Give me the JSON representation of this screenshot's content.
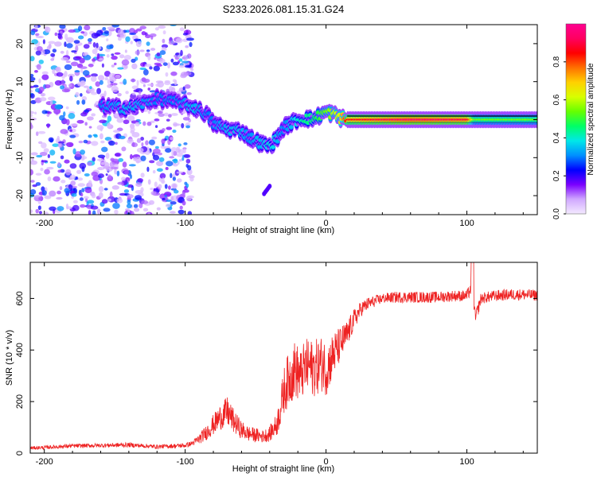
{
  "figure_title": "S233.2026.081.15.31.G24",
  "chart_data": [
    {
      "type": "heatmap",
      "name": "spectrogram",
      "xlabel": "Height of straight line (km)",
      "ylabel": "Frequency (Hz)",
      "xlim": [
        -210,
        150
      ],
      "ylim": [
        -25,
        25
      ],
      "xticks": [
        -200,
        -100,
        0,
        100
      ],
      "xtick_labels": [
        "-200",
        "-100",
        "0",
        "100"
      ],
      "yticks": [
        20,
        10,
        0,
        -10,
        -20
      ],
      "ytick_labels": [
        "20",
        "10",
        "0",
        "-10",
        "-20"
      ],
      "colorbar": {
        "label": "Normalized spectral amplitude",
        "range": [
          0,
          1
        ],
        "ticks": [
          0.0,
          0.2,
          0.4,
          0.6,
          0.8
        ],
        "tick_labels": [
          "0.0",
          "0.2",
          "0.4",
          "0.6",
          "0.8"
        ],
        "colors": [
          "#f4eaff",
          "#d0a8ff",
          "#7b00ff",
          "#0000ff",
          "#0090ff",
          "#00e8e8",
          "#00ff66",
          "#66ff00",
          "#d8ff00",
          "#ffd000",
          "#ff7000",
          "#ff0000",
          "#ff0060",
          "#ff0090"
        ]
      },
      "frequency_track": [
        {
          "x": -160,
          "f": 3.5,
          "amp": 0.3
        },
        {
          "x": -140,
          "f": 3.0,
          "amp": 0.35
        },
        {
          "x": -120,
          "f": 5.5,
          "amp": 0.3
        },
        {
          "x": -105,
          "f": 4.5,
          "amp": 0.3
        },
        {
          "x": -95,
          "f": 3.5,
          "amp": 0.35
        },
        {
          "x": -85,
          "f": 1.5,
          "amp": 0.3
        },
        {
          "x": -80,
          "f": -1.0,
          "amp": 0.3
        },
        {
          "x": -70,
          "f": -2.5,
          "amp": 0.35
        },
        {
          "x": -60,
          "f": -3.0,
          "amp": 0.35
        },
        {
          "x": -55,
          "f": -4.5,
          "amp": 0.3
        },
        {
          "x": -50,
          "f": -5.5,
          "amp": 0.35
        },
        {
          "x": -45,
          "f": -6.5,
          "amp": 0.35
        },
        {
          "x": -40,
          "f": -7.0,
          "amp": 0.4
        },
        {
          "x": -35,
          "f": -5.0,
          "amp": 0.35
        },
        {
          "x": -30,
          "f": -2.0,
          "amp": 0.3
        },
        {
          "x": -25,
          "f": -1.0,
          "amp": 0.35
        },
        {
          "x": -20,
          "f": 0.0,
          "amp": 0.4
        },
        {
          "x": -15,
          "f": 0.5,
          "amp": 0.45
        },
        {
          "x": -10,
          "f": 0.0,
          "amp": 0.45
        },
        {
          "x": -5,
          "f": 1.0,
          "amp": 0.5
        },
        {
          "x": 0,
          "f": 2.0,
          "amp": 0.55
        },
        {
          "x": 5,
          "f": 1.5,
          "amp": 0.6
        },
        {
          "x": 10,
          "f": 0.5,
          "amp": 0.65
        },
        {
          "x": 15,
          "f": 0.0,
          "amp": 0.85
        },
        {
          "x": 60,
          "f": 0.0,
          "amp": 0.95
        },
        {
          "x": 100,
          "f": 0.0,
          "amp": 0.9
        },
        {
          "x": 105,
          "f": 0.0,
          "amp": 0.55
        },
        {
          "x": 150,
          "f": 0.0,
          "amp": 0.55
        }
      ]
    },
    {
      "type": "line",
      "name": "snr",
      "xlabel": "Height of straight line (km)",
      "ylabel": "SNR (10 * v/v)",
      "xlim": [
        -210,
        150
      ],
      "ylim": [
        0,
        740
      ],
      "xticks": [
        -200,
        -100,
        0,
        100
      ],
      "xtick_labels": [
        "-200",
        "-100",
        "0",
        "100"
      ],
      "yticks": [
        0,
        200,
        400,
        600
      ],
      "ytick_labels": [
        "0",
        "200",
        "400",
        "600"
      ],
      "color": "#ee2222",
      "series": [
        {
          "name": "SNR",
          "x": [
            -210,
            -200,
            -180,
            -160,
            -140,
            -120,
            -100,
            -95,
            -90,
            -85,
            -80,
            -75,
            -70,
            -65,
            -60,
            -55,
            -50,
            -45,
            -40,
            -35,
            -32,
            -30,
            -28,
            -25,
            -22,
            -20,
            -18,
            -15,
            -12,
            -10,
            -8,
            -5,
            -2,
            0,
            5,
            10,
            15,
            20,
            25,
            30,
            35,
            40,
            50,
            60,
            70,
            80,
            90,
            100,
            104,
            106,
            110,
            120,
            130,
            140,
            150
          ],
          "values": [
            20,
            22,
            28,
            30,
            32,
            25,
            30,
            38,
            55,
            80,
            110,
            140,
            160,
            120,
            90,
            75,
            70,
            65,
            75,
            110,
            180,
            240,
            270,
            300,
            330,
            310,
            300,
            330,
            340,
            330,
            330,
            340,
            350,
            320,
            380,
            420,
            460,
            520,
            560,
            580,
            590,
            600,
            605,
            605,
            605,
            605,
            610,
            610,
            650,
            520,
            600,
            610,
            615,
            615,
            612
          ],
          "noise": [
            6,
            7,
            8,
            8,
            9,
            8,
            9,
            10,
            20,
            30,
            40,
            50,
            60,
            45,
            35,
            30,
            28,
            25,
            30,
            45,
            70,
            90,
            100,
            110,
            110,
            110,
            100,
            110,
            110,
            110,
            110,
            110,
            110,
            100,
            90,
            70,
            55,
            40,
            30,
            25,
            22,
            20,
            22,
            22,
            22,
            22,
            22,
            22,
            30,
            30,
            22,
            22,
            22,
            22,
            22
          ]
        }
      ]
    }
  ]
}
